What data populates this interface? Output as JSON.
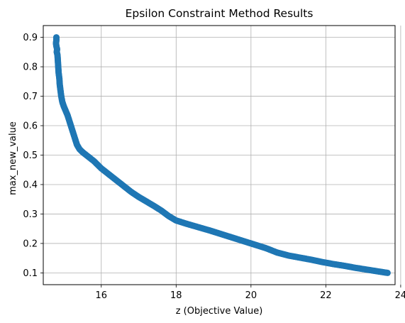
{
  "chart_data": {
    "type": "scatter",
    "title": "Epsilon Constraint Method Results",
    "xlabel": "z (Objective Value)",
    "ylabel": "max_new_value",
    "xlim": [
      14.45,
      23.85
    ],
    "ylim": [
      0.06,
      0.94
    ],
    "xticks": [
      16,
      18,
      20,
      22,
      24
    ],
    "yticks": [
      0.1,
      0.2,
      0.3,
      0.4,
      0.5,
      0.6,
      0.7,
      0.8,
      0.9
    ],
    "grid": true,
    "marker_color": "#1f77b4",
    "series": [
      {
        "points": [
          [
            14.8,
            0.9
          ],
          [
            14.8,
            0.89
          ],
          [
            14.79,
            0.88
          ],
          [
            14.8,
            0.87
          ],
          [
            14.82,
            0.86
          ],
          [
            14.81,
            0.85
          ],
          [
            14.83,
            0.84
          ],
          [
            14.84,
            0.82
          ],
          [
            14.85,
            0.8
          ],
          [
            14.86,
            0.78
          ],
          [
            14.88,
            0.76
          ],
          [
            14.89,
            0.74
          ],
          [
            14.91,
            0.72
          ],
          [
            14.93,
            0.7
          ],
          [
            14.96,
            0.68
          ],
          [
            15.0,
            0.665
          ],
          [
            15.05,
            0.65
          ],
          [
            15.1,
            0.635
          ],
          [
            15.15,
            0.615
          ],
          [
            15.2,
            0.595
          ],
          [
            15.25,
            0.575
          ],
          [
            15.3,
            0.555
          ],
          [
            15.35,
            0.535
          ],
          [
            15.42,
            0.52
          ],
          [
            15.5,
            0.51
          ],
          [
            15.6,
            0.5
          ],
          [
            15.8,
            0.48
          ],
          [
            16.0,
            0.455
          ],
          [
            16.2,
            0.435
          ],
          [
            16.4,
            0.415
          ],
          [
            16.6,
            0.395
          ],
          [
            16.8,
            0.375
          ],
          [
            17.0,
            0.358
          ],
          [
            17.2,
            0.343
          ],
          [
            17.4,
            0.328
          ],
          [
            17.6,
            0.312
          ],
          [
            17.8,
            0.293
          ],
          [
            18.0,
            0.278
          ],
          [
            18.3,
            0.266
          ],
          [
            18.6,
            0.255
          ],
          [
            18.9,
            0.244
          ],
          [
            19.2,
            0.232
          ],
          [
            19.5,
            0.22
          ],
          [
            19.8,
            0.208
          ],
          [
            20.1,
            0.196
          ],
          [
            20.4,
            0.184
          ],
          [
            20.7,
            0.169
          ],
          [
            21.0,
            0.159
          ],
          [
            21.3,
            0.152
          ],
          [
            21.6,
            0.145
          ],
          [
            21.9,
            0.137
          ],
          [
            22.2,
            0.13
          ],
          [
            22.5,
            0.124
          ],
          [
            22.8,
            0.117
          ],
          [
            23.1,
            0.111
          ],
          [
            23.4,
            0.105
          ],
          [
            23.65,
            0.1
          ]
        ]
      }
    ]
  }
}
